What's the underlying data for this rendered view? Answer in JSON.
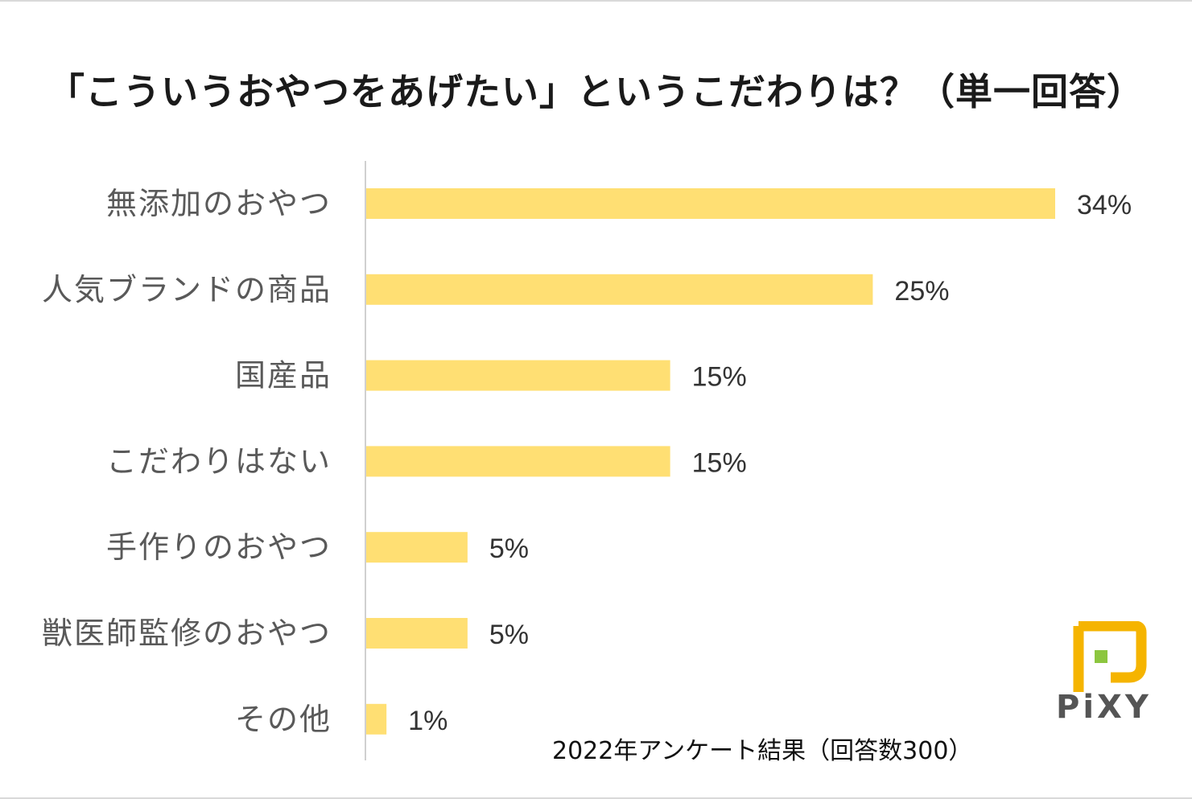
{
  "chart_data": {
    "type": "bar",
    "orientation": "horizontal",
    "title": "「こういうおやつをあげたい」というこだわりは？（単一回答）",
    "categories": [
      "無添加のおやつ",
      "人気ブランドの商品",
      "国産品",
      "こだわりはない",
      "手作りのおやつ",
      "獣医師監修のおやつ",
      "その他"
    ],
    "values": [
      34,
      25,
      15,
      15,
      5,
      5,
      1
    ],
    "value_labels": [
      "34%",
      "25%",
      "15%",
      "15%",
      "5%",
      "5%",
      "1%"
    ],
    "unit": "%",
    "xlim": [
      0,
      34
    ],
    "bar_color": "#ffdf73",
    "xlabel": "",
    "ylabel": ""
  },
  "footnote": "2022年アンケート結果（回答数300）",
  "logo": {
    "text": "PiXY",
    "icon": "pixy-logo-icon",
    "colors": {
      "frame": "#f5b400",
      "square": "#8cc63f",
      "text": "#555555"
    }
  }
}
